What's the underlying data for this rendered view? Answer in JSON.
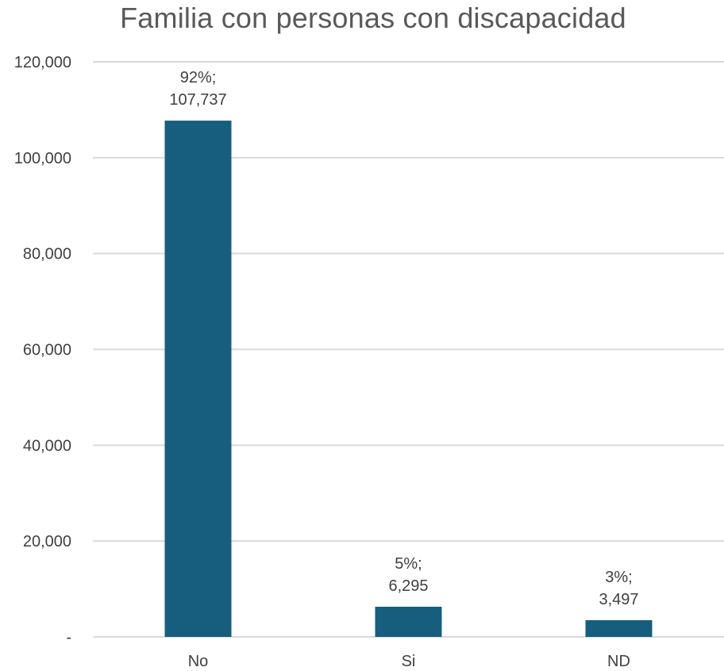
{
  "chart_data": {
    "type": "bar",
    "title": "Familia con personas con discapacidad",
    "categories": [
      "No",
      "Si",
      "ND"
    ],
    "values": [
      107737,
      6295,
      3497
    ],
    "percent_labels": [
      "92%;",
      "5%;",
      "3%;"
    ],
    "value_labels": [
      "107,737",
      "6,295",
      "3,497"
    ],
    "xlabel": "",
    "ylabel": "",
    "ylim": [
      0,
      120000
    ],
    "y_ticks": [
      0,
      20000,
      40000,
      60000,
      80000,
      100000,
      120000
    ],
    "y_tick_labels": [
      "-",
      "20,000",
      "40,000",
      "60,000",
      "80,000",
      "100,000",
      "120,000"
    ],
    "grid": true,
    "legend": "none",
    "bar_color": "#175E7E",
    "gridline_color": "#D9D9D9",
    "text_color": "#404040"
  }
}
